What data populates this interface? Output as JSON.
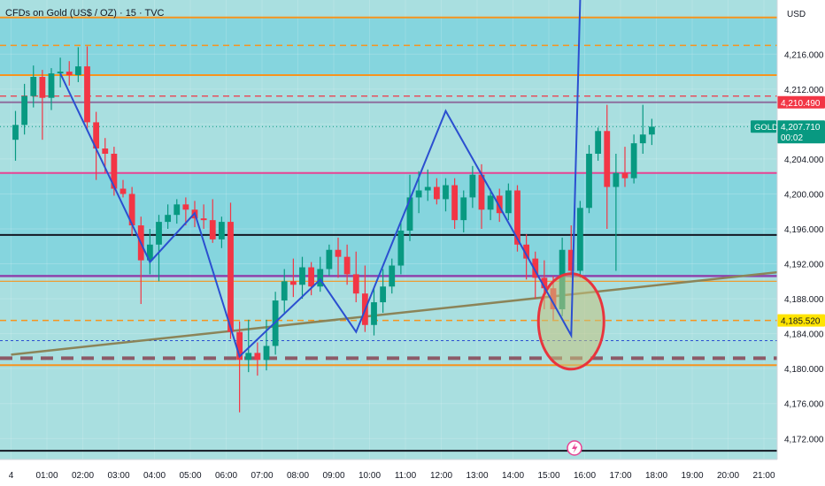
{
  "header": {
    "title": "CFDs on Gold (US$ / OZ) · 15 · TVC",
    "currency": "USD"
  },
  "colors": {
    "background": "#a9dfe0",
    "zone_fill": "#7fd3dd",
    "up": "#089981",
    "down": "#f23645",
    "wave": "#2b4fd0",
    "orange": "#f7941d",
    "pink": "#e84393",
    "purple": "#8e44ad",
    "circle": "#e8343d",
    "trendline": "#8b8458"
  },
  "chart_data": {
    "type": "candlestick",
    "symbol": "GOLD",
    "interval_minutes": 15,
    "ylim": [
      4169.6,
      4222.2
    ],
    "xlim": [
      "00:00",
      "21:45"
    ],
    "y_ticks": [
      4172,
      4176,
      4180,
      4184,
      4188,
      4192,
      4196,
      4200,
      4204,
      4208,
      4212,
      4216
    ],
    "x_tick_labels": [
      "4",
      "01:00",
      "02:00",
      "03:00",
      "04:00",
      "05:00",
      "06:00",
      "07:00",
      "08:00",
      "09:00",
      "10:00",
      "11:00",
      "12:00",
      "13:00",
      "14:00",
      "15:00",
      "16:00",
      "17:00",
      "18:00",
      "19:00",
      "20:00",
      "21:00"
    ],
    "candles": [
      {
        "t": "00:00",
        "o": 4206.2,
        "h": 4209.5,
        "l": 4203.8,
        "c": 4207.9
      },
      {
        "t": "00:15",
        "o": 4207.9,
        "h": 4212.6,
        "l": 4206.8,
        "c": 4211.2
      },
      {
        "t": "00:30",
        "o": 4211.2,
        "h": 4214.7,
        "l": 4209.9,
        "c": 4213.4
      },
      {
        "t": "00:45",
        "o": 4213.4,
        "h": 4214.2,
        "l": 4206.2,
        "c": 4211.0
      },
      {
        "t": "01:00",
        "o": 4211.0,
        "h": 4214.4,
        "l": 4209.6,
        "c": 4213.8
      },
      {
        "t": "01:15",
        "o": 4213.8,
        "h": 4215.6,
        "l": 4212.2,
        "c": 4214.0
      },
      {
        "t": "01:30",
        "o": 4214.0,
        "h": 4215.2,
        "l": 4212.4,
        "c": 4213.6
      },
      {
        "t": "01:45",
        "o": 4213.6,
        "h": 4216.8,
        "l": 4212.8,
        "c": 4214.6
      },
      {
        "t": "02:00",
        "o": 4214.6,
        "h": 4216.9,
        "l": 4207.2,
        "c": 4208.2
      },
      {
        "t": "02:15",
        "o": 4208.2,
        "h": 4209.4,
        "l": 4201.6,
        "c": 4205.2
      },
      {
        "t": "02:30",
        "o": 4205.2,
        "h": 4206.4,
        "l": 4202.4,
        "c": 4204.6
      },
      {
        "t": "02:45",
        "o": 4204.6,
        "h": 4205.4,
        "l": 4199.8,
        "c": 4200.6
      },
      {
        "t": "03:00",
        "o": 4200.6,
        "h": 4201.6,
        "l": 4199.6,
        "c": 4200.0
      },
      {
        "t": "03:15",
        "o": 4200.0,
        "h": 4200.8,
        "l": 4195.2,
        "c": 4196.4
      },
      {
        "t": "03:30",
        "o": 4196.4,
        "h": 4197.4,
        "l": 4187.4,
        "c": 4192.4
      },
      {
        "t": "03:45",
        "o": 4192.4,
        "h": 4196.0,
        "l": 4190.8,
        "c": 4194.2
      },
      {
        "t": "04:00",
        "o": 4194.2,
        "h": 4197.6,
        "l": 4190.0,
        "c": 4196.8
      },
      {
        "t": "04:15",
        "o": 4196.8,
        "h": 4198.8,
        "l": 4196.0,
        "c": 4197.6
      },
      {
        "t": "04:30",
        "o": 4197.6,
        "h": 4199.4,
        "l": 4196.6,
        "c": 4198.8
      },
      {
        "t": "04:45",
        "o": 4198.8,
        "h": 4199.6,
        "l": 4196.4,
        "c": 4198.2
      },
      {
        "t": "05:00",
        "o": 4198.2,
        "h": 4199.2,
        "l": 4196.2,
        "c": 4197.2
      },
      {
        "t": "05:15",
        "o": 4197.2,
        "h": 4198.8,
        "l": 4196.0,
        "c": 4197.0
      },
      {
        "t": "05:30",
        "o": 4197.0,
        "h": 4199.4,
        "l": 4194.4,
        "c": 4194.8
      },
      {
        "t": "05:45",
        "o": 4194.8,
        "h": 4197.4,
        "l": 4193.8,
        "c": 4196.8
      },
      {
        "t": "06:00",
        "o": 4196.8,
        "h": 4199.0,
        "l": 4183.4,
        "c": 4184.2
      },
      {
        "t": "06:15",
        "o": 4184.2,
        "h": 4185.4,
        "l": 4175.0,
        "c": 4181.0
      },
      {
        "t": "06:30",
        "o": 4181.0,
        "h": 4185.6,
        "l": 4179.6,
        "c": 4181.8
      },
      {
        "t": "06:45",
        "o": 4181.8,
        "h": 4183.0,
        "l": 4179.2,
        "c": 4181.0
      },
      {
        "t": "07:00",
        "o": 4181.0,
        "h": 4185.6,
        "l": 4179.8,
        "c": 4182.6
      },
      {
        "t": "07:15",
        "o": 4182.6,
        "h": 4188.8,
        "l": 4181.6,
        "c": 4187.8
      },
      {
        "t": "07:30",
        "o": 4187.8,
        "h": 4191.4,
        "l": 4186.4,
        "c": 4190.0
      },
      {
        "t": "07:45",
        "o": 4190.0,
        "h": 4192.6,
        "l": 4188.2,
        "c": 4189.6
      },
      {
        "t": "08:00",
        "o": 4189.6,
        "h": 4192.8,
        "l": 4188.0,
        "c": 4191.6
      },
      {
        "t": "08:15",
        "o": 4191.6,
        "h": 4192.2,
        "l": 4188.4,
        "c": 4189.4
      },
      {
        "t": "08:30",
        "o": 4189.4,
        "h": 4192.8,
        "l": 4188.8,
        "c": 4191.4
      },
      {
        "t": "08:45",
        "o": 4191.4,
        "h": 4194.2,
        "l": 4190.6,
        "c": 4193.6
      },
      {
        "t": "09:00",
        "o": 4193.6,
        "h": 4195.0,
        "l": 4190.4,
        "c": 4192.8
      },
      {
        "t": "09:15",
        "o": 4192.8,
        "h": 4194.2,
        "l": 4189.6,
        "c": 4190.8
      },
      {
        "t": "09:30",
        "o": 4190.8,
        "h": 4193.4,
        "l": 4187.6,
        "c": 4188.6
      },
      {
        "t": "09:45",
        "o": 4188.6,
        "h": 4191.8,
        "l": 4184.2,
        "c": 4185.0
      },
      {
        "t": "10:00",
        "o": 4185.0,
        "h": 4189.2,
        "l": 4183.8,
        "c": 4187.6
      },
      {
        "t": "10:15",
        "o": 4187.6,
        "h": 4191.4,
        "l": 4186.4,
        "c": 4189.4
      },
      {
        "t": "10:30",
        "o": 4189.4,
        "h": 4192.6,
        "l": 4188.6,
        "c": 4191.8
      },
      {
        "t": "10:45",
        "o": 4191.8,
        "h": 4196.8,
        "l": 4190.8,
        "c": 4195.8
      },
      {
        "t": "11:00",
        "o": 4195.8,
        "h": 4202.2,
        "l": 4194.6,
        "c": 4199.6
      },
      {
        "t": "11:15",
        "o": 4199.6,
        "h": 4202.6,
        "l": 4197.8,
        "c": 4200.4
      },
      {
        "t": "11:30",
        "o": 4200.4,
        "h": 4202.8,
        "l": 4199.2,
        "c": 4200.8
      },
      {
        "t": "11:45",
        "o": 4200.8,
        "h": 4201.8,
        "l": 4198.8,
        "c": 4199.4
      },
      {
        "t": "12:00",
        "o": 4199.4,
        "h": 4201.8,
        "l": 4198.0,
        "c": 4201.0
      },
      {
        "t": "12:15",
        "o": 4201.0,
        "h": 4201.8,
        "l": 4196.0,
        "c": 4197.0
      },
      {
        "t": "12:30",
        "o": 4197.0,
        "h": 4200.4,
        "l": 4195.6,
        "c": 4199.6
      },
      {
        "t": "12:45",
        "o": 4199.6,
        "h": 4203.2,
        "l": 4198.4,
        "c": 4202.2
      },
      {
        "t": "13:00",
        "o": 4202.2,
        "h": 4203.4,
        "l": 4196.0,
        "c": 4198.2
      },
      {
        "t": "13:15",
        "o": 4198.2,
        "h": 4200.6,
        "l": 4197.0,
        "c": 4199.8
      },
      {
        "t": "13:30",
        "o": 4199.8,
        "h": 4200.6,
        "l": 4196.8,
        "c": 4197.8
      },
      {
        "t": "13:45",
        "o": 4197.8,
        "h": 4201.2,
        "l": 4197.0,
        "c": 4200.4
      },
      {
        "t": "14:00",
        "o": 4200.4,
        "h": 4201.0,
        "l": 4193.4,
        "c": 4194.2
      },
      {
        "t": "14:15",
        "o": 4194.2,
        "h": 4195.4,
        "l": 4190.2,
        "c": 4192.6
      },
      {
        "t": "14:30",
        "o": 4192.6,
        "h": 4193.4,
        "l": 4188.0,
        "c": 4190.4
      },
      {
        "t": "14:45",
        "o": 4190.4,
        "h": 4192.4,
        "l": 4186.8,
        "c": 4189.2
      },
      {
        "t": "15:00",
        "o": 4189.2,
        "h": 4190.6,
        "l": 4185.6,
        "c": 4186.8
      },
      {
        "t": "15:15",
        "o": 4186.8,
        "h": 4195.0,
        "l": 4186.0,
        "c": 4193.6
      },
      {
        "t": "15:30",
        "o": 4193.6,
        "h": 4196.4,
        "l": 4190.4,
        "c": 4191.2
      },
      {
        "t": "15:45",
        "o": 4191.2,
        "h": 4199.2,
        "l": 4190.4,
        "c": 4198.4
      },
      {
        "t": "16:00",
        "o": 4198.4,
        "h": 4205.6,
        "l": 4197.8,
        "c": 4204.6
      },
      {
        "t": "16:15",
        "o": 4204.6,
        "h": 4207.6,
        "l": 4203.8,
        "c": 4207.2
      },
      {
        "t": "16:30",
        "o": 4207.2,
        "h": 4210.2,
        "l": 4196.0,
        "c": 4200.8
      },
      {
        "t": "16:45",
        "o": 4200.8,
        "h": 4204.6,
        "l": 4191.2,
        "c": 4202.4
      },
      {
        "t": "17:00",
        "o": 4202.4,
        "h": 4205.4,
        "l": 4200.8,
        "c": 4201.8
      },
      {
        "t": "17:15",
        "o": 4201.8,
        "h": 4206.8,
        "l": 4201.2,
        "c": 4205.8
      },
      {
        "t": "17:30",
        "o": 4205.8,
        "h": 4210.2,
        "l": 4204.6,
        "c": 4206.8
      },
      {
        "t": "17:45",
        "o": 4206.8,
        "h": 4208.6,
        "l": 4205.6,
        "c": 4207.7
      }
    ],
    "price_labels": [
      {
        "value": 4210.49,
        "label": "4,210.490",
        "color": "#f23645"
      },
      {
        "value": 4207.71,
        "label": "4,207.710",
        "sub": "00:02",
        "color": "#089981",
        "tag": "GOLD"
      },
      {
        "value": 4185.52,
        "label": "4,185.520",
        "color": "#ffe400"
      }
    ],
    "horizontal_lines": [
      {
        "y": 4220.2,
        "color": "#f7941d",
        "style": "solid",
        "width": 2
      },
      {
        "y": 4217.0,
        "color": "#f7941d",
        "style": "dashed",
        "width": 1.5
      },
      {
        "y": 4213.6,
        "color": "#f7941d",
        "style": "solid",
        "width": 2
      },
      {
        "y": 4211.2,
        "color": "#f23645",
        "style": "dashed",
        "width": 1.2
      },
      {
        "y": 4210.49,
        "color": "#8e6f9e",
        "style": "solid",
        "width": 2
      },
      {
        "y": 4202.4,
        "color": "#e84393",
        "style": "solid",
        "width": 2
      },
      {
        "y": 4195.3,
        "color": "#131722",
        "style": "solid",
        "width": 2
      },
      {
        "y": 4190.6,
        "color": "#8e44ad",
        "style": "solid",
        "width": 2.5
      },
      {
        "y": 4190.0,
        "color": "#f7941d",
        "style": "solid",
        "width": 1.2
      },
      {
        "y": 4185.52,
        "color": "#f7941d",
        "style": "dashed",
        "width": 1.5
      },
      {
        "y": 4183.2,
        "color": "#2b4fd0",
        "style": "dotted",
        "width": 1
      },
      {
        "y": 4181.2,
        "color": "#8c5a67",
        "style": "dashed-heavy",
        "width": 4
      },
      {
        "y": 4180.4,
        "color": "#f7941d",
        "style": "solid",
        "width": 2
      },
      {
        "y": 4170.6,
        "color": "#131722",
        "style": "solid",
        "width": 2
      }
    ],
    "zones": [
      {
        "from": 4213.6,
        "to": 4220.2
      },
      {
        "from": 4190.6,
        "to": 4202.4
      }
    ],
    "trendline": {
      "from": {
        "t": "00:00",
        "y": 4181.6
      },
      "to": {
        "t": "21:45",
        "y": 4191.2
      }
    },
    "wave_path": [
      {
        "t": "01:15",
        "y": 4213.8
      },
      {
        "t": "03:45",
        "y": 4192.2
      },
      {
        "t": "05:00",
        "y": 4197.8
      },
      {
        "t": "06:15",
        "y": 4181.4
      },
      {
        "t": "08:30",
        "y": 4190.2
      },
      {
        "t": "09:30",
        "y": 4184.2
      },
      {
        "t": "12:00",
        "y": 4209.5
      },
      {
        "t": "13:15",
        "y": 4200.4
      },
      {
        "t": "15:30",
        "y": 4183.8
      },
      {
        "t": "15:45",
        "y": 4222.2
      }
    ],
    "circle": {
      "t": "15:30",
      "y": 4185.4
    }
  }
}
